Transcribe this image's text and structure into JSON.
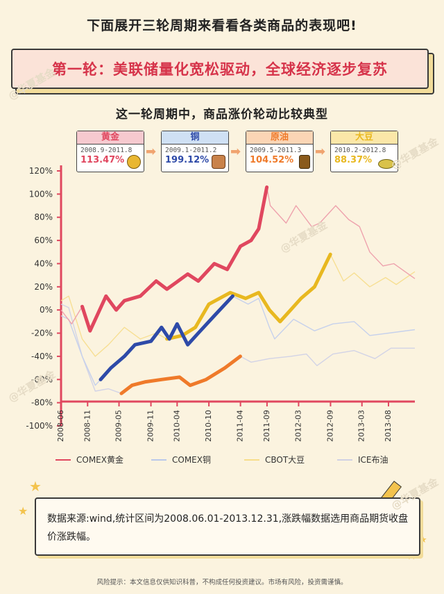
{
  "intro_text": "下面展开三轮周期来看看各类商品的表现吧!",
  "banner_text": "第一轮：美联储量化宽松驱动，全球经济逐步复苏",
  "subtitle": "这一轮周期中，商品涨价轮动比较典型",
  "cards": [
    {
      "name": "黄金",
      "range": "2008.9-2011.8",
      "pct": "113.47%",
      "color": "#e0475f",
      "head_bg": "#f6c9cf",
      "icon": "gold-coin-icon"
    },
    {
      "name": "铜",
      "range": "2009.1-2011.2",
      "pct": "199.12%",
      "color": "#2e4aa8",
      "head_bg": "#cfe0f4",
      "icon": "copper-coil-icon"
    },
    {
      "name": "原油",
      "range": "2009.5-2011.3",
      "pct": "104.52%",
      "color": "#ef7a2a",
      "head_bg": "#fbd5b5",
      "icon": "oil-barrel-icon"
    },
    {
      "name": "大豆",
      "range": "2010.2-2012.8",
      "pct": "88.37%",
      "color": "#e8b820",
      "head_bg": "#fbe7a8",
      "icon": "soybean-icon"
    }
  ],
  "chart_data": {
    "type": "line",
    "title": "",
    "xlabel": "",
    "ylabel": "",
    "ylim": [
      -100,
      120
    ],
    "y_ticks": [
      "120%",
      "100%",
      "80%",
      "60%",
      "40%",
      "20%",
      "0%",
      "-20%",
      "-40%",
      "-60%",
      "-80%",
      "-100%"
    ],
    "x_ticks": [
      "2008-06",
      "2008-11",
      "2009-05",
      "2009-11",
      "2010-04",
      "2010-10",
      "2011-04",
      "2011-09",
      "2012-03",
      "2012-09",
      "2013-03",
      "2013-08"
    ],
    "x_range": [
      "2008-06-01",
      "2013-12-31"
    ],
    "grid": false,
    "legend_position": "bottom",
    "series": [
      {
        "name": "COMEX黄金",
        "color": "#e0475f",
        "highlight": [
          "2008-09-01",
          "2011-08-31"
        ],
        "points": [
          [
            "2008-06-01",
            0
          ],
          [
            "2008-08-01",
            -12
          ],
          [
            "2008-10-01",
            3
          ],
          [
            "2008-11-15",
            -18
          ],
          [
            "2009-02-15",
            12
          ],
          [
            "2009-04-15",
            0
          ],
          [
            "2009-06-01",
            8
          ],
          [
            "2009-09-01",
            12
          ],
          [
            "2009-12-01",
            25
          ],
          [
            "2010-02-01",
            18
          ],
          [
            "2010-06-01",
            31
          ],
          [
            "2010-08-01",
            25
          ],
          [
            "2010-11-01",
            40
          ],
          [
            "2011-01-15",
            35
          ],
          [
            "2011-04-01",
            55
          ],
          [
            "2011-06-01",
            60
          ],
          [
            "2011-07-15",
            70
          ],
          [
            "2011-08-31",
            106
          ],
          [
            "2011-09-20",
            90
          ],
          [
            "2011-12-20",
            75
          ],
          [
            "2012-02-15",
            90
          ],
          [
            "2012-05-15",
            72
          ],
          [
            "2012-07-01",
            75
          ],
          [
            "2012-10-01",
            90
          ],
          [
            "2012-12-15",
            78
          ],
          [
            "2013-02-15",
            72
          ],
          [
            "2013-04-15",
            50
          ],
          [
            "2013-06-30",
            38
          ],
          [
            "2013-09-01",
            40
          ],
          [
            "2013-12-31",
            27
          ]
        ]
      },
      {
        "name": "COMEX铜",
        "color": "#2e4aa8",
        "highlight": [
          "2009-01-01",
          "2011-02-28"
        ],
        "points": [
          [
            "2008-06-01",
            -5
          ],
          [
            "2008-07-15",
            -8
          ],
          [
            "2008-10-01",
            -40
          ],
          [
            "2008-12-15",
            -65
          ],
          [
            "2009-01-15",
            -60
          ],
          [
            "2009-03-15",
            -50
          ],
          [
            "2009-06-01",
            -40
          ],
          [
            "2009-08-01",
            -30
          ],
          [
            "2009-11-01",
            -27
          ],
          [
            "2010-01-01",
            -15
          ],
          [
            "2010-02-15",
            -25
          ],
          [
            "2010-04-01",
            -12
          ],
          [
            "2010-06-01",
            -30
          ],
          [
            "2010-08-01",
            -20
          ],
          [
            "2010-11-01",
            -5
          ],
          [
            "2011-02-15",
            12
          ],
          [
            "2011-05-15",
            5
          ],
          [
            "2011-07-15",
            10
          ],
          [
            "2011-09-15",
            -15
          ],
          [
            "2011-10-15",
            -25
          ],
          [
            "2012-02-01",
            -8
          ],
          [
            "2012-06-01",
            -18
          ],
          [
            "2012-09-15",
            -12
          ],
          [
            "2013-01-15",
            -10
          ],
          [
            "2013-04-15",
            -22
          ],
          [
            "2013-08-01",
            -20
          ],
          [
            "2013-12-31",
            -17
          ]
        ]
      },
      {
        "name": "CBOT大豆",
        "color": "#e8b820",
        "highlight": [
          "2010-02-01",
          "2012-08-31"
        ],
        "points": [
          [
            "2008-06-01",
            8
          ],
          [
            "2008-07-15",
            12
          ],
          [
            "2008-10-01",
            -25
          ],
          [
            "2008-12-15",
            -40
          ],
          [
            "2009-03-01",
            -30
          ],
          [
            "2009-06-01",
            -15
          ],
          [
            "2009-09-01",
            -25
          ],
          [
            "2009-12-01",
            -20
          ],
          [
            "2010-02-01",
            -25
          ],
          [
            "2010-05-01",
            -22
          ],
          [
            "2010-07-15",
            -15
          ],
          [
            "2010-10-01",
            5
          ],
          [
            "2011-02-01",
            15
          ],
          [
            "2011-05-01",
            10
          ],
          [
            "2011-07-15",
            15
          ],
          [
            "2011-09-15",
            0
          ],
          [
            "2011-11-15",
            -10
          ],
          [
            "2012-01-15",
            0
          ],
          [
            "2012-03-15",
            10
          ],
          [
            "2012-06-01",
            20
          ],
          [
            "2012-08-31",
            48
          ],
          [
            "2012-11-15",
            25
          ],
          [
            "2013-01-15",
            32
          ],
          [
            "2013-04-15",
            20
          ],
          [
            "2013-07-15",
            28
          ],
          [
            "2013-09-15",
            22
          ],
          [
            "2013-12-31",
            33
          ]
        ]
      },
      {
        "name": "ICE布油",
        "color": "#b5b8d8",
        "highlight": [
          "2009-05-01",
          "2011-03-31"
        ],
        "points": [
          [
            "2008-06-01",
            5
          ],
          [
            "2008-07-15",
            2
          ],
          [
            "2008-10-01",
            -40
          ],
          [
            "2008-12-15",
            -70
          ],
          [
            "2009-03-01",
            -68
          ],
          [
            "2009-05-15",
            -72
          ],
          [
            "2009-07-15",
            -65
          ],
          [
            "2009-10-01",
            -62
          ],
          [
            "2010-01-01",
            -60
          ],
          [
            "2010-04-15",
            -58
          ],
          [
            "2010-06-15",
            -65
          ],
          [
            "2010-09-15",
            -60
          ],
          [
            "2011-01-01",
            -50
          ],
          [
            "2011-03-31",
            -40
          ],
          [
            "2011-06-01",
            -45
          ],
          [
            "2011-09-15",
            -42
          ],
          [
            "2012-01-15",
            -40
          ],
          [
            "2012-04-15",
            -38
          ],
          [
            "2012-06-15",
            -48
          ],
          [
            "2012-09-15",
            -38
          ],
          [
            "2013-01-15",
            -35
          ],
          [
            "2013-05-15",
            -42
          ],
          [
            "2013-08-15",
            -33
          ],
          [
            "2013-12-31",
            -33
          ]
        ]
      }
    ]
  },
  "highlight_colors": {
    "ICE布油": "#ef7a2a"
  },
  "legend_labels": [
    "COMEX黄金",
    "COMEX铜",
    "CBOT大豆",
    "ICE布油"
  ],
  "note_text": "数据来源:wind,统计区间为2008.06.01-2013.12.31,涨跌幅数据选用商品期货收盘价涨跌幅。",
  "risk_text": "风险提示：本文信息仅供知识科普，不构成任何投资建议。市场有风险，投资需谨慎。",
  "watermark": "@华夏基金"
}
